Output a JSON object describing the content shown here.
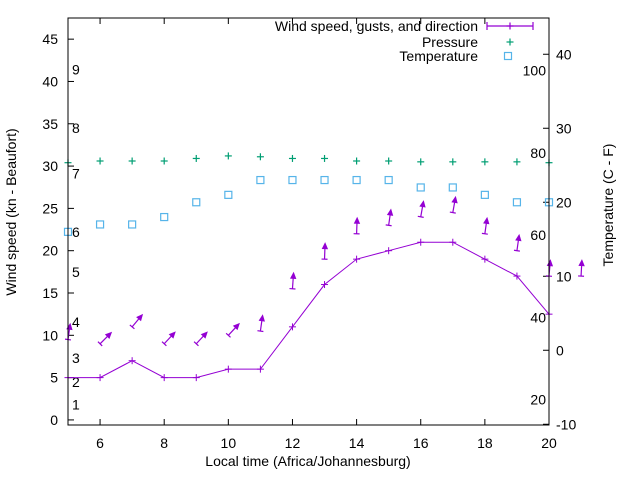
{
  "figure": {
    "background": "#ffffff",
    "axis_color": "#000000"
  },
  "chart_data": {
    "type": "line",
    "title": "",
    "xlabel": "Local time (Africa/Johannesburg)",
    "ylabel": "Wind speed (kn - Beaufort)",
    "y2label": "Temperature (C - F)",
    "legend_position": "top-right-inside",
    "grid": false,
    "x_range": [
      5,
      20
    ],
    "y_range_kn": [
      -0.6,
      47.5
    ],
    "y2_range_c": [
      -10.1,
      44.9
    ],
    "x_ticks": [
      6,
      8,
      10,
      12,
      14,
      16,
      18,
      20
    ],
    "y_ticks_kn": [
      0,
      5,
      10,
      15,
      20,
      25,
      30,
      35,
      40,
      45
    ],
    "y2_ticks_c": [
      -10,
      0,
      10,
      20,
      30,
      40
    ],
    "beaufort_scale_labels": [
      {
        "label": "1",
        "kn": 1.8
      },
      {
        "label": "2",
        "kn": 4.5
      },
      {
        "label": "3",
        "kn": 7.3
      },
      {
        "label": "4",
        "kn": 11.6
      },
      {
        "label": "5",
        "kn": 17.5
      },
      {
        "label": "6",
        "kn": 22.2
      },
      {
        "label": "7",
        "kn": 29.1
      },
      {
        "label": "8",
        "kn": 34.5
      },
      {
        "label": "9",
        "kn": 41.4
      }
    ],
    "fahrenheit_scale_labels": [
      20,
      40,
      60,
      80,
      100
    ],
    "hours": [
      5,
      6,
      7,
      8,
      9,
      10,
      11,
      12,
      13,
      14,
      15,
      16,
      17,
      18,
      19,
      20
    ],
    "series": [
      {
        "name": "Wind speed, gusts, and direction",
        "type": "line+points+vectors",
        "color": "#9400d3",
        "wind_kn": [
          5,
          5,
          7,
          5,
          5,
          6,
          6,
          11,
          16,
          19,
          20,
          21,
          21,
          19,
          17,
          12.5
        ],
        "gust_kn": [
          9.5,
          9,
          11,
          9,
          9,
          10,
          10.5,
          15.5,
          19,
          22,
          23,
          24,
          24.5,
          22,
          20,
          17
        ],
        "direction_deg_cw_from_up": [
          8,
          45,
          40,
          43,
          43,
          43,
          8,
          4,
          2,
          2,
          8,
          10,
          10,
          8,
          8,
          5
        ],
        "offplot_vector": {
          "hour": 21,
          "gust_kn": 17,
          "direction_deg_cw_from_up": 3
        }
      },
      {
        "name": "Pressure",
        "type": "points",
        "marker": "plus",
        "color": "#009e73",
        "values_inhg": [
          30.4,
          30.6,
          30.6,
          30.6,
          30.9,
          31.2,
          31.1,
          30.9,
          30.9,
          30.6,
          30.6,
          30.5,
          30.5,
          30.5,
          30.5,
          30.4
        ]
      },
      {
        "name": "Temperature",
        "type": "points",
        "marker": "open-square",
        "color": "#56b4e9",
        "values_c": [
          16,
          17,
          17,
          18,
          20,
          21,
          23,
          23,
          23,
          23,
          23,
          22,
          22,
          21,
          20,
          20
        ]
      }
    ]
  }
}
